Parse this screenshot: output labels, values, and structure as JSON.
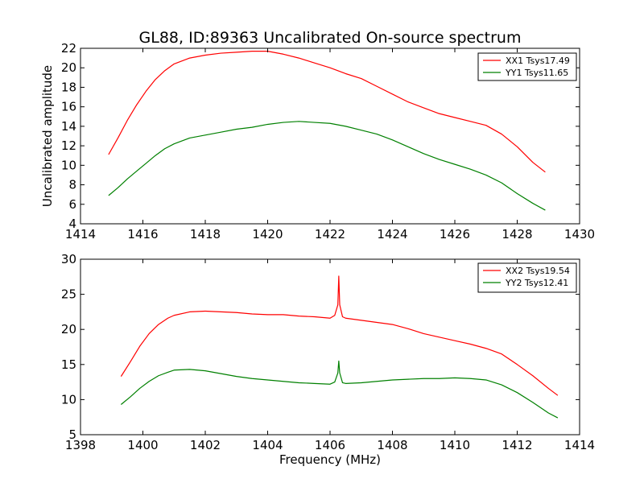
{
  "figure": {
    "title": "GL88, ID:89363 Uncalibrated On-source spectrum"
  },
  "chart_data": [
    {
      "type": "line",
      "title": "GL88, ID:89363 Uncalibrated On-source spectrum",
      "xlabel": "",
      "ylabel": "Uncalibrated amplitude",
      "xlim": [
        1414,
        1430
      ],
      "ylim": [
        4,
        22
      ],
      "xticks": [
        1414,
        1416,
        1418,
        1420,
        1422,
        1424,
        1426,
        1428,
        1430
      ],
      "yticks": [
        4,
        6,
        8,
        10,
        12,
        14,
        16,
        18,
        20,
        22
      ],
      "grid": false,
      "legend_position": "top-right",
      "series": [
        {
          "name": "XX1 Tsys17.49",
          "color": "#ff0000",
          "x": [
            1414.9,
            1415.2,
            1415.5,
            1415.8,
            1416.1,
            1416.4,
            1416.7,
            1417.0,
            1417.5,
            1418.0,
            1418.5,
            1419.0,
            1419.5,
            1420.0,
            1420.5,
            1421.0,
            1421.5,
            1422.0,
            1422.5,
            1423.0,
            1423.5,
            1424.0,
            1424.5,
            1425.0,
            1425.5,
            1426.0,
            1426.5,
            1427.0,
            1427.5,
            1428.0,
            1428.5,
            1428.9
          ],
          "y": [
            11.1,
            12.8,
            14.6,
            16.2,
            17.6,
            18.8,
            19.7,
            20.4,
            21.0,
            21.3,
            21.5,
            21.6,
            21.7,
            21.7,
            21.4,
            21.0,
            20.5,
            20.0,
            19.4,
            18.9,
            18.1,
            17.3,
            16.5,
            15.9,
            15.3,
            14.9,
            14.5,
            14.1,
            13.2,
            11.9,
            10.3,
            9.3
          ]
        },
        {
          "name": "YY1 Tsys11.65",
          "color": "#008000",
          "x": [
            1414.9,
            1415.2,
            1415.5,
            1415.8,
            1416.1,
            1416.4,
            1416.7,
            1417.0,
            1417.5,
            1418.0,
            1418.5,
            1419.0,
            1419.5,
            1420.0,
            1420.5,
            1421.0,
            1421.5,
            1422.0,
            1422.5,
            1423.0,
            1423.5,
            1424.0,
            1424.5,
            1425.0,
            1425.5,
            1426.0,
            1426.5,
            1427.0,
            1427.5,
            1428.0,
            1428.5,
            1428.9
          ],
          "y": [
            6.9,
            7.7,
            8.6,
            9.4,
            10.2,
            11.0,
            11.7,
            12.2,
            12.8,
            13.1,
            13.4,
            13.7,
            13.9,
            14.2,
            14.4,
            14.5,
            14.4,
            14.3,
            14.0,
            13.6,
            13.2,
            12.6,
            11.9,
            11.2,
            10.6,
            10.1,
            9.6,
            9.0,
            8.2,
            7.1,
            6.1,
            5.4
          ]
        }
      ]
    },
    {
      "type": "line",
      "title": "",
      "xlabel": "Frequency (MHz)",
      "ylabel": "",
      "xlim": [
        1398,
        1414
      ],
      "ylim": [
        5,
        30
      ],
      "xticks": [
        1398,
        1400,
        1402,
        1404,
        1406,
        1408,
        1410,
        1412,
        1414
      ],
      "yticks": [
        5,
        10,
        15,
        20,
        25,
        30
      ],
      "grid": false,
      "legend_position": "top-right",
      "series": [
        {
          "name": "XX2 Tsys19.54",
          "color": "#ff0000",
          "x": [
            1399.3,
            1399.6,
            1399.9,
            1400.2,
            1400.5,
            1400.8,
            1401.0,
            1401.5,
            1402.0,
            1402.5,
            1403.0,
            1403.5,
            1404.0,
            1404.5,
            1405.0,
            1405.5,
            1406.0,
            1406.15,
            1406.25,
            1406.28,
            1406.31,
            1406.4,
            1406.5,
            1407.0,
            1407.5,
            1408.0,
            1408.5,
            1409.0,
            1409.5,
            1410.0,
            1410.5,
            1411.0,
            1411.5,
            1412.0,
            1412.5,
            1413.0,
            1413.3
          ],
          "y": [
            13.3,
            15.4,
            17.6,
            19.4,
            20.7,
            21.6,
            22.0,
            22.5,
            22.6,
            22.5,
            22.4,
            22.2,
            22.1,
            22.1,
            21.9,
            21.8,
            21.6,
            22.0,
            23.5,
            27.6,
            23.5,
            21.8,
            21.6,
            21.3,
            21.0,
            20.7,
            20.1,
            19.4,
            18.9,
            18.4,
            17.9,
            17.3,
            16.5,
            15.0,
            13.4,
            11.6,
            10.6
          ]
        },
        {
          "name": "YY2 Tsys12.41",
          "color": "#008000",
          "x": [
            1399.3,
            1399.6,
            1399.9,
            1400.2,
            1400.5,
            1400.8,
            1401.0,
            1401.5,
            1402.0,
            1402.5,
            1403.0,
            1403.5,
            1404.0,
            1404.5,
            1405.0,
            1405.5,
            1406.0,
            1406.15,
            1406.25,
            1406.28,
            1406.31,
            1406.4,
            1406.5,
            1407.0,
            1407.5,
            1408.0,
            1408.5,
            1409.0,
            1409.5,
            1410.0,
            1410.5,
            1411.0,
            1411.5,
            1412.0,
            1412.5,
            1413.0,
            1413.3
          ],
          "y": [
            9.3,
            10.4,
            11.6,
            12.6,
            13.4,
            13.9,
            14.2,
            14.3,
            14.1,
            13.7,
            13.3,
            13.0,
            12.8,
            12.6,
            12.4,
            12.3,
            12.2,
            12.5,
            13.8,
            15.5,
            13.8,
            12.4,
            12.3,
            12.4,
            12.6,
            12.8,
            12.9,
            13.0,
            13.0,
            13.1,
            13.0,
            12.8,
            12.1,
            11.0,
            9.6,
            8.1,
            7.4
          ]
        }
      ]
    }
  ]
}
